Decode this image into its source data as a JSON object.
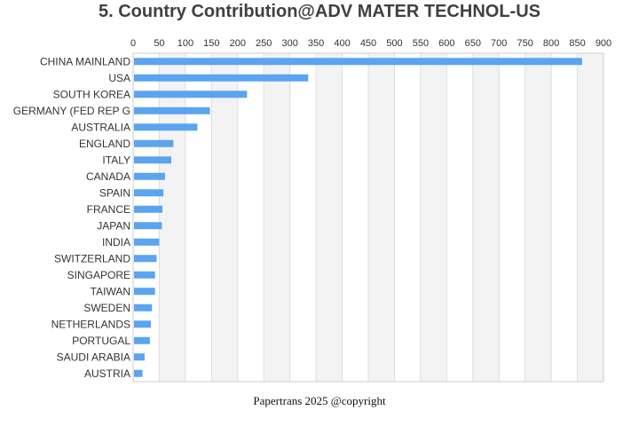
{
  "colors": {
    "bar": "#5ba4f0",
    "band_alt": "#f3f3f3",
    "grid": "#dddddd",
    "axis": "#cccccc"
  },
  "chart_data": {
    "type": "bar",
    "orientation": "horizontal",
    "title": "5. Country Contribution@ADV MATER TECHNOL-US",
    "xlabel": "",
    "ylabel": "",
    "xlim": [
      0,
      900
    ],
    "tick_step": 50,
    "x_ticks": [
      "0",
      "50",
      "100",
      "150",
      "200",
      "250",
      "300",
      "350",
      "400",
      "450",
      "500",
      "550",
      "600",
      "650",
      "700",
      "750",
      "800",
      "850",
      "900"
    ],
    "x_axis_position": "top",
    "grid": true,
    "alternating_bands": true,
    "categories": [
      "CHINA MAINLAND",
      "USA",
      "SOUTH KOREA",
      "GERMANY (FED REP G",
      "AUSTRALIA",
      "ENGLAND",
      "ITALY",
      "CANADA",
      "SPAIN",
      "FRANCE",
      "JAPAN",
      "INDIA",
      "SWITZERLAND",
      "SINGAPORE",
      "TAIWAN",
      "SWEDEN",
      "NETHERLANDS",
      "PORTUGAL",
      "SAUDI ARABIA",
      "AUSTRIA"
    ],
    "values": [
      859,
      335,
      218,
      147,
      123,
      77,
      73,
      61,
      58,
      56,
      55,
      50,
      45,
      42,
      42,
      36,
      34,
      32,
      22,
      18
    ]
  },
  "footer": "Papertrans 2025 @copyright"
}
